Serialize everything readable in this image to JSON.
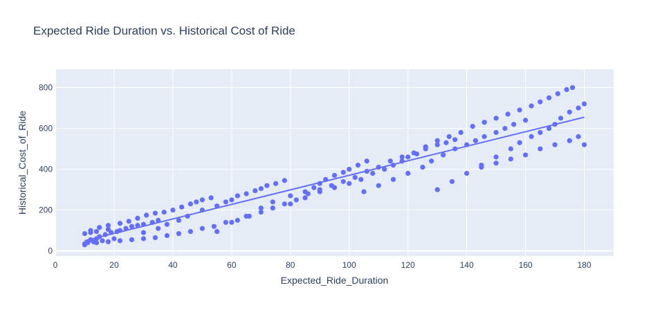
{
  "chart_data": {
    "type": "scatter",
    "title": "Expected Ride Duration vs. Historical Cost of Ride",
    "xlabel": "Expected_Ride_Duration",
    "ylabel": "Historical_Cost_of_Ride",
    "xlim": [
      0,
      190
    ],
    "ylim": [
      -25,
      890
    ],
    "x_ticks": [
      0,
      20,
      40,
      60,
      80,
      100,
      120,
      140,
      160,
      180
    ],
    "y_ticks": [
      0,
      200,
      400,
      600,
      800
    ],
    "grid": true,
    "legend": "none",
    "colors": {
      "marker": "#636efa",
      "trendline": "#636efa",
      "plot_background": "#e5ecf6",
      "grid": "#ffffff",
      "text": "#2a3f5f"
    },
    "trendline": {
      "x": [
        10,
        180
      ],
      "y": [
        50,
        655
      ]
    },
    "series": [
      {
        "name": "",
        "x": [
          10,
          10,
          11,
          12,
          13,
          14,
          16,
          18,
          20,
          10,
          11,
          12,
          14,
          15,
          17,
          19,
          21,
          22,
          24,
          26,
          28,
          30,
          33,
          35,
          12,
          15,
          18,
          22,
          25,
          28,
          31,
          34,
          37,
          40,
          43,
          46,
          48,
          50,
          53,
          30,
          35,
          38,
          42,
          45,
          50,
          55,
          58,
          60,
          62,
          65,
          68,
          70,
          72,
          75,
          78,
          55,
          60,
          65,
          70,
          74,
          80,
          85,
          88,
          90,
          92,
          95,
          98,
          100,
          103,
          106,
          80,
          85,
          90,
          95,
          100,
          104,
          108,
          112,
          115,
          118,
          120,
          123,
          126,
          130,
          133,
          136,
          105,
          110,
          115,
          120,
          125,
          128,
          132,
          136,
          140,
          143,
          146,
          150,
          153,
          156,
          160,
          130,
          135,
          140,
          145,
          150,
          155,
          158,
          162,
          165,
          168,
          170,
          172,
          175,
          178,
          180,
          145,
          150,
          155,
          160,
          165,
          170,
          175,
          178,
          180,
          176,
          174,
          171,
          168,
          165,
          162,
          158,
          154,
          150,
          146,
          142,
          138,
          134,
          130,
          126,
          122,
          118,
          114,
          110,
          106,
          102,
          98,
          94,
          90,
          86,
          82,
          78,
          74,
          70,
          66,
          62,
          58,
          54,
          50,
          46,
          42,
          38,
          34,
          30,
          26,
          22,
          18,
          14
        ],
        "y": [
          30,
          85,
          40,
          90,
          45,
          95,
          50,
          105,
          60,
          35,
          42,
          55,
          60,
          70,
          80,
          90,
          95,
          100,
          110,
          120,
          125,
          130,
          140,
          150,
          100,
          115,
          125,
          135,
          145,
          160,
          175,
          185,
          190,
          200,
          215,
          230,
          240,
          250,
          260,
          90,
          110,
          130,
          150,
          170,
          200,
          220,
          240,
          250,
          270,
          280,
          295,
          305,
          320,
          330,
          345,
          95,
          140,
          170,
          210,
          240,
          270,
          290,
          310,
          330,
          350,
          370,
          385,
          400,
          420,
          440,
          230,
          260,
          290,
          310,
          330,
          350,
          380,
          400,
          420,
          440,
          460,
          475,
          500,
          520,
          530,
          545,
          290,
          320,
          350,
          380,
          410,
          440,
          470,
          500,
          520,
          540,
          560,
          580,
          600,
          620,
          640,
          300,
          340,
          380,
          420,
          460,
          500,
          530,
          560,
          580,
          600,
          620,
          650,
          680,
          700,
          720,
          410,
          430,
          450,
          470,
          500,
          520,
          540,
          560,
          520,
          800,
          790,
          770,
          750,
          730,
          710,
          690,
          670,
          650,
          630,
          610,
          580,
          560,
          540,
          510,
          480,
          460,
          440,
          410,
          390,
          360,
          340,
          320,
          300,
          280,
          250,
          230,
          210,
          190,
          170,
          150,
          140,
          120,
          110,
          95,
          85,
          75,
          65,
          60,
          55,
          50,
          45,
          40
        ]
      }
    ]
  }
}
